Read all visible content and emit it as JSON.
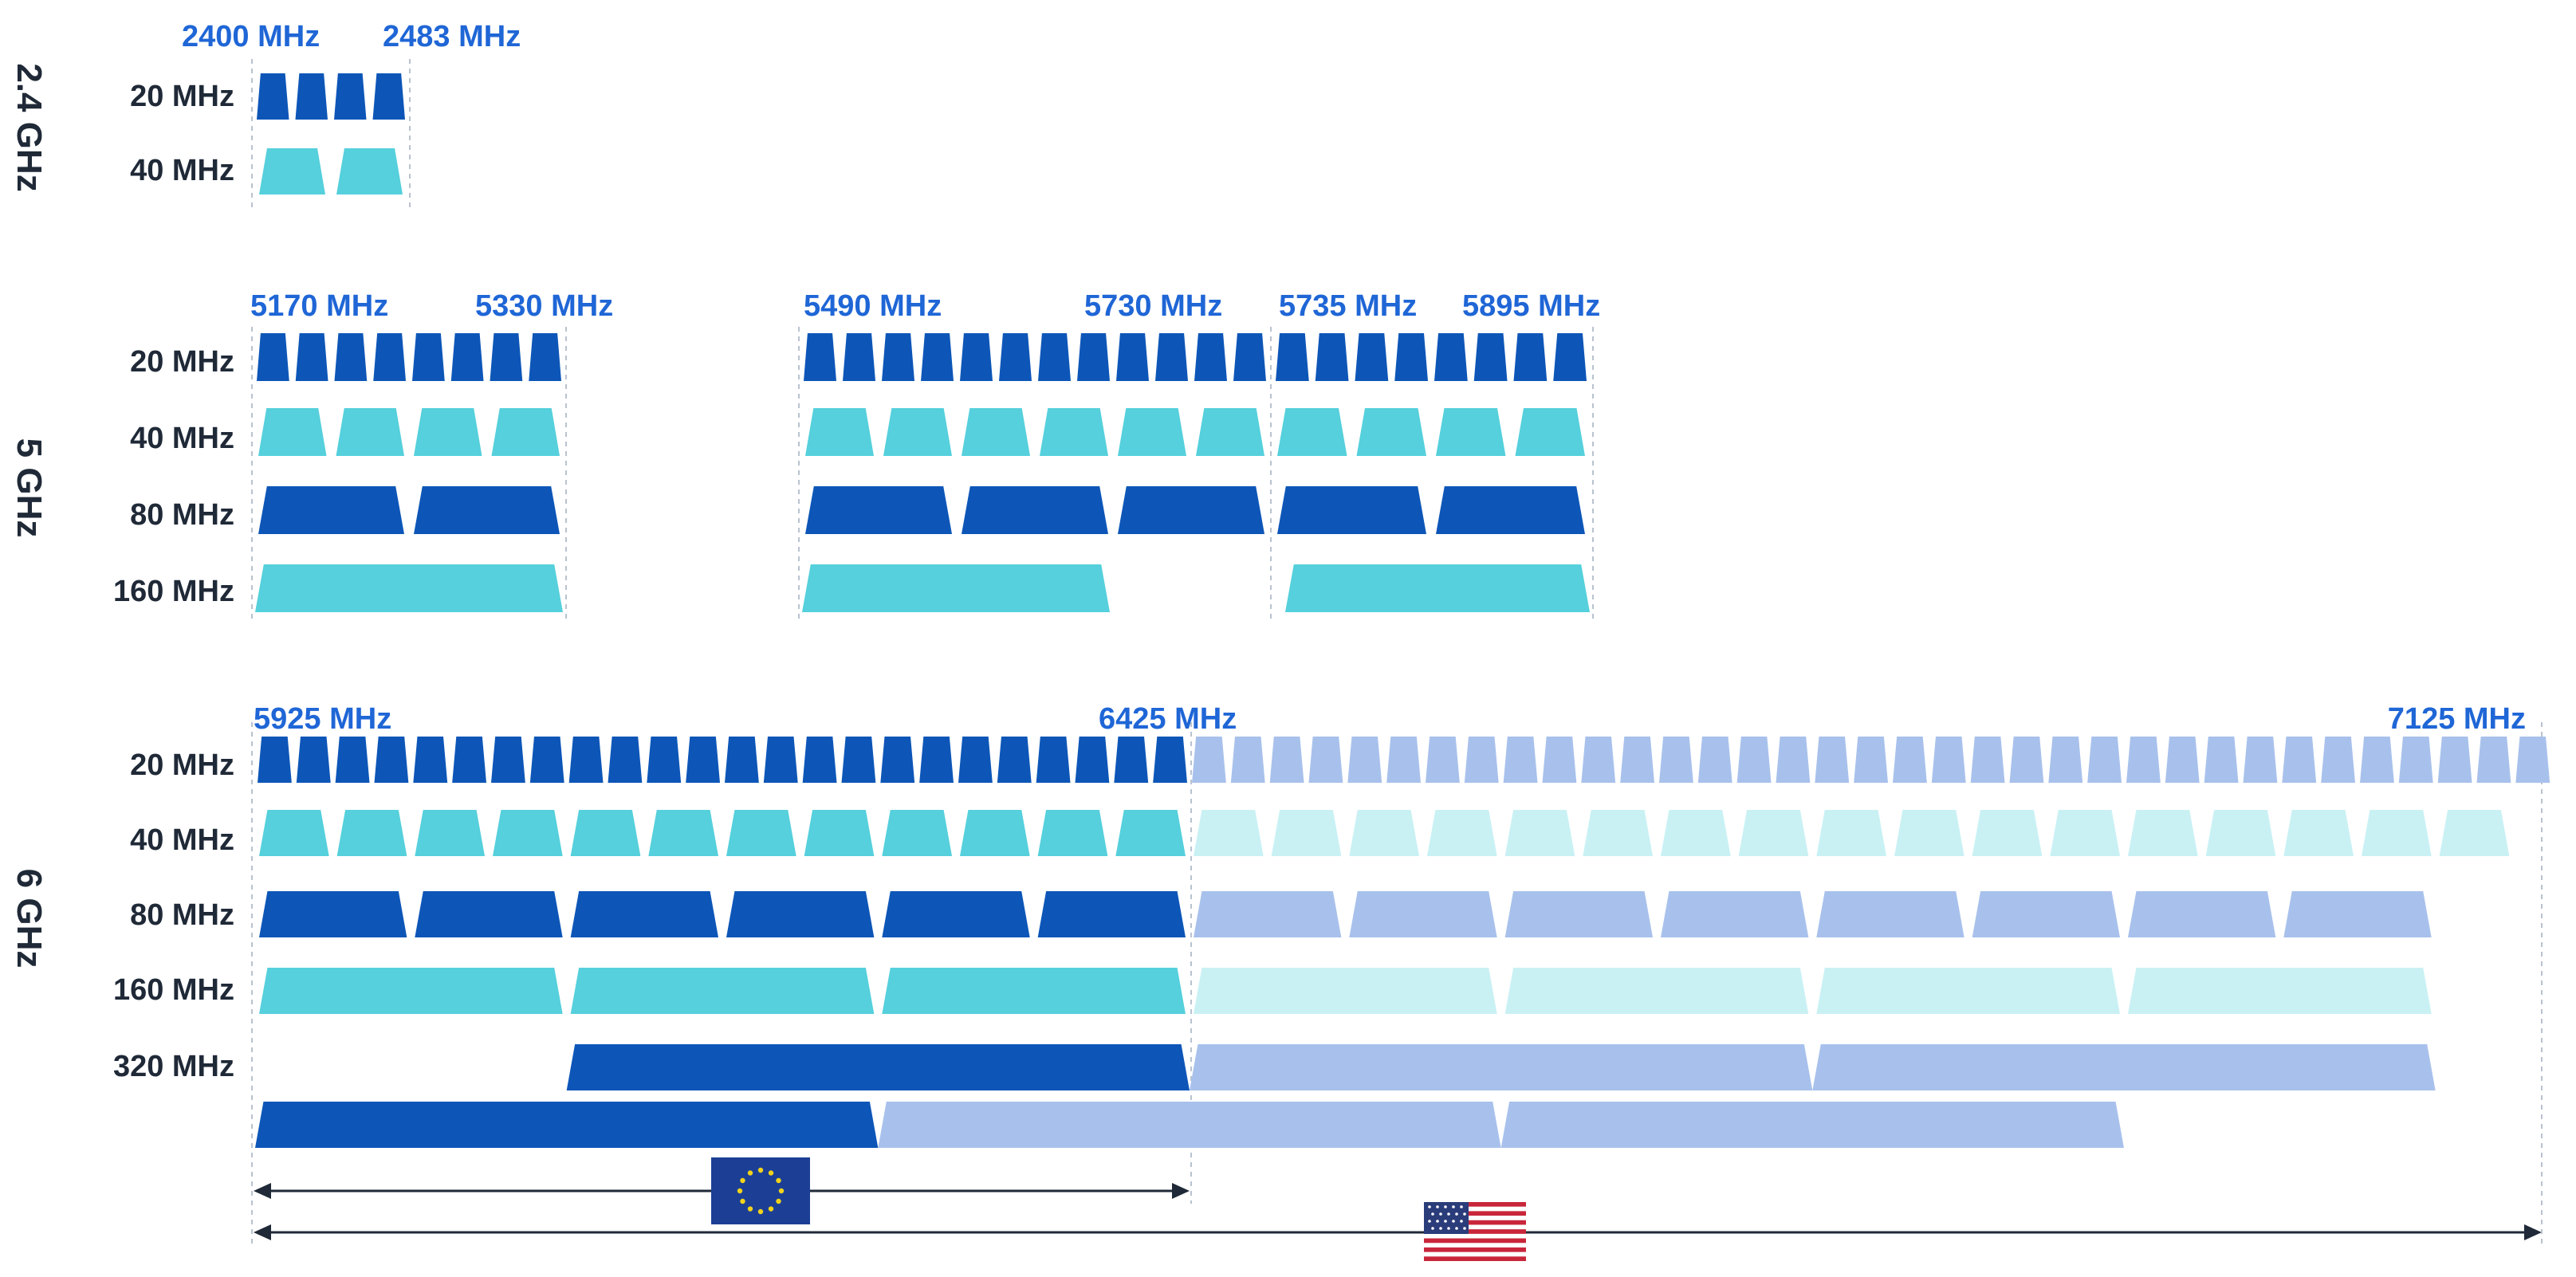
{
  "colors": {
    "dark": "#0d56b8",
    "light": "#55d0dc",
    "dark_faded": "#a8c1ec",
    "light_faded": "#c9f1f4",
    "freq_text": "#1f66d6",
    "label_text": "#1f2937"
  },
  "bands": [
    {
      "name": "2.4 GHz",
      "freq_labels": [
        "2400 MHz",
        "2483 MHz"
      ],
      "rows": [
        {
          "label": "20 MHz",
          "tone": "dark",
          "channels": 4
        },
        {
          "label": "40 MHz",
          "tone": "light",
          "channels": 2
        }
      ]
    },
    {
      "name": "5 GHz",
      "freq_labels": [
        "5170 MHz",
        "5330 MHz",
        "5490 MHz",
        "5730 MHz",
        "5735 MHz",
        "5895 MHz"
      ],
      "rows": [
        {
          "label": "20 MHz",
          "tone": "dark",
          "channels": [
            8,
            12,
            8
          ]
        },
        {
          "label": "40 MHz",
          "tone": "light",
          "channels": [
            4,
            6,
            4
          ]
        },
        {
          "label": "80 MHz",
          "tone": "dark",
          "channels": [
            2,
            3,
            2
          ]
        },
        {
          "label": "160 MHz",
          "tone": "light",
          "channels": [
            1,
            1,
            1
          ]
        }
      ]
    },
    {
      "name": "6 GHz",
      "freq_labels": [
        "5925 MHz",
        "6425 MHz",
        "7125 MHz"
      ],
      "rows": [
        {
          "label": "20 MHz",
          "tone": "dark",
          "channels_eu": 24,
          "channels_us": 35
        },
        {
          "label": "40 MHz",
          "tone": "light",
          "channels_eu": 12,
          "channels_us": 17
        },
        {
          "label": "80 MHz",
          "tone": "dark",
          "channels_eu": 6,
          "channels_us": 8
        },
        {
          "label": "160 MHz",
          "tone": "light",
          "channels_eu": 3,
          "channels_us": 4
        },
        {
          "label": "320 MHz",
          "tone": "dark",
          "channels_eu": 1,
          "channels_us": 2
        },
        {
          "label": "",
          "tone": "dark",
          "channels_eu": 1,
          "channels_us": 2
        }
      ]
    }
  ],
  "regions": [
    {
      "flag": "eu-flag-icon",
      "range": [
        "5925 MHz",
        "6425 MHz"
      ]
    },
    {
      "flag": "us-flag-icon",
      "range": [
        "5925 MHz",
        "7125 MHz"
      ]
    }
  ]
}
